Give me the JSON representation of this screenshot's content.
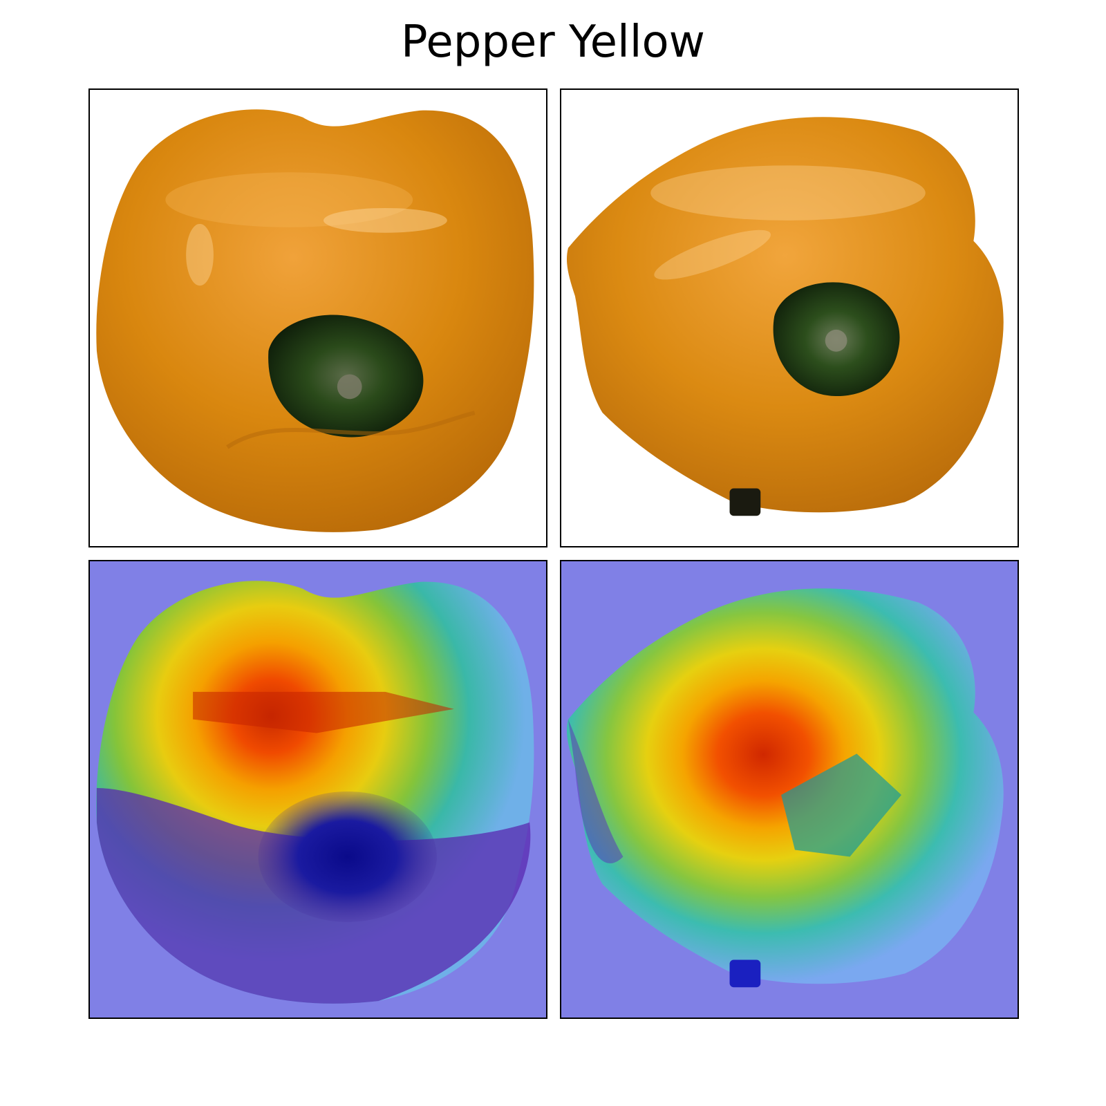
{
  "figure": {
    "title": "Pepper Yellow"
  },
  "panels": [
    {
      "icon": "yellow-pepper-photo-icon"
    },
    {
      "icon": "yellow-pepper-photo-icon"
    },
    {
      "icon": "pepper-heatmap-overlay-icon"
    },
    {
      "icon": "pepper-heatmap-overlay-icon"
    }
  ],
  "colors": {
    "pepper": "#d9870f",
    "pepper_light": "#f2a83a",
    "stem": "#1f3a14",
    "heatmap_background": "#8080e6"
  }
}
